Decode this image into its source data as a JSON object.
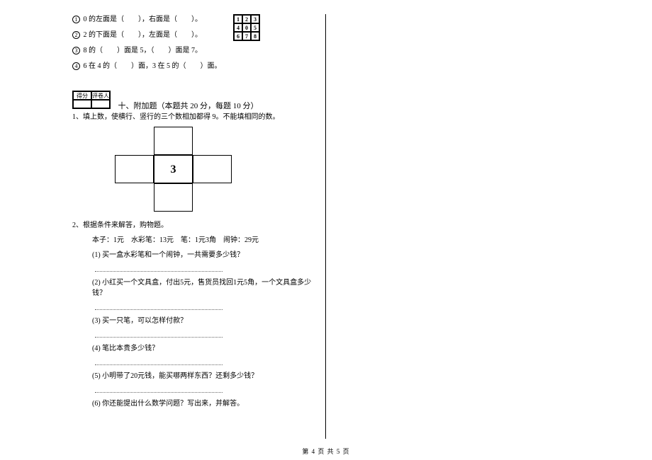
{
  "top": {
    "line1_prefix": "①",
    "line1": "0 的左面是（　　），右面是（　　）。",
    "line2_prefix": "②",
    "line2": "2 的下面是（　　），左面是（　　）。",
    "line3_prefix": "③",
    "line3": "8 的（　　）面是 5，（　　）面是 7。",
    "line4_prefix": "④",
    "line4": "6 在 4 的（　　）面，3 在 5 的（　　）面。",
    "grid": [
      [
        "1",
        "2",
        "3"
      ],
      [
        "4",
        "0",
        "5"
      ],
      [
        "6",
        "7",
        "8"
      ]
    ]
  },
  "score": {
    "c1": "得分",
    "c2": "评卷人"
  },
  "section10": {
    "title": "十、附加题（本题共 20 分，每题 10 分）",
    "q1": "1、填上数，使横行、竖行的三个数相加都得 9。不能填相同的数。",
    "center_val": "3",
    "q2": "2、根据条件来解答，购物题。",
    "prices": "本子：1元　水彩笔：13元　笔：1元3角　闹钟：29元",
    "sub1": "(1) 买一盒水彩笔和一个闹钟，一共需要多少钱？",
    "sub2": "(2) 小红买一个文具盒，付出5元，售货员找回1元5角，一个文具盒多少钱？",
    "sub3": "(3) 买一只笔，可以怎样付款？",
    "sub4": "(4) 笔比本贵多少钱？",
    "sub5": "(5) 小明带了20元钱，能买哪两样东西？还剩多少钱？",
    "sub6": "(6) 你还能提出什么数学问题？写出来，并解答。"
  },
  "footer": "第 4 页 共 5 页"
}
